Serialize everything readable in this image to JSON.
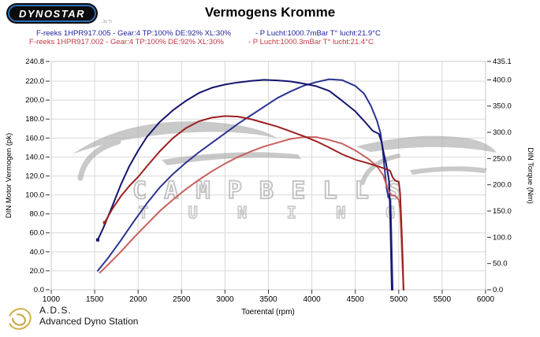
{
  "header": {
    "logo_text": "DYNOSTAR",
    "logo_tagline": "..3c TI",
    "title": "Vermogens Kromme"
  },
  "legend": [
    {
      "run": "F-reeks 1HPR917.005 - Gear:4 TP:100% DE:92% XL:30%",
      "ambient": "- P Lucht:1000.7mBar T° lucht:21.9°C",
      "color": "#2121a0"
    },
    {
      "run": "F-reeks 1HPR917.002 - Gear:4 TP:100% DE:92% XL:30%",
      "ambient": "- P Lucht:1000.3mBar T° lucht:21.4°C",
      "color": "#c23a44"
    }
  ],
  "watermark": {
    "line1": "CAMPBELLS",
    "line2": "TUNING"
  },
  "footer": {
    "abbr": "A.D.S.",
    "name": "Advanced Dyno Station"
  },
  "chart_data": {
    "type": "line",
    "title": "Vermogens Kromme",
    "xlabel": "Toerental (rpm)",
    "ylabel_left": "DIN Motor Vermogen (pk)",
    "ylabel_right": "DIN Torque (Nm)",
    "xlim": [
      1000,
      6000
    ],
    "ylim_left": [
      0,
      240.8
    ],
    "ylim_right": [
      0,
      435.1
    ],
    "grid": true,
    "x_ticks": [
      "1000",
      "1500",
      "2000",
      "2500",
      "3000",
      "3500",
      "4000",
      "4500",
      "5000",
      "5500",
      "6000"
    ],
    "y_ticks_left": [
      "240.8",
      "220.0",
      "200.0",
      "180.0",
      "160.0",
      "140.0",
      "120.0",
      "100.0",
      "80.0",
      "60.0",
      "40.0",
      "20.0",
      "0.0"
    ],
    "y_ticks_right": [
      "435.1",
      "400.0",
      "350.0",
      "300.0",
      "250.0",
      "200.0",
      "150.0",
      "100.0",
      "50.0",
      "0.0"
    ],
    "grid_color": "#d9d9d9",
    "series": [
      {
        "name": "run-005-power",
        "unit": "pk",
        "axis": "left",
        "color": "#2a3390",
        "marker_start": false,
        "points": [
          [
            1535,
            20
          ],
          [
            1650,
            33
          ],
          [
            1800,
            52
          ],
          [
            1950,
            72
          ],
          [
            2100,
            91
          ],
          [
            2250,
            108
          ],
          [
            2400,
            122
          ],
          [
            2550,
            134
          ],
          [
            2700,
            145
          ],
          [
            2850,
            155
          ],
          [
            3000,
            165
          ],
          [
            3150,
            175
          ],
          [
            3300,
            184
          ],
          [
            3450,
            193
          ],
          [
            3600,
            202
          ],
          [
            3750,
            209
          ],
          [
            3900,
            215
          ],
          [
            4050,
            219
          ],
          [
            4200,
            222
          ],
          [
            4350,
            221
          ],
          [
            4500,
            215
          ],
          [
            4600,
            207
          ],
          [
            4680,
            194
          ],
          [
            4750,
            178
          ],
          [
            4790,
            165
          ],
          [
            4815,
            148
          ],
          [
            4840,
            125
          ],
          [
            4860,
            107
          ],
          [
            4880,
            98
          ],
          [
            4905,
            95
          ],
          [
            4915,
            60
          ],
          [
            4925,
            20
          ],
          [
            4930,
            0
          ]
        ]
      },
      {
        "name": "run-005-torque",
        "unit": "Nm",
        "axis": "right",
        "color": "#15156e",
        "marker_start": true,
        "points": [
          [
            1535,
            95
          ],
          [
            1600,
            118
          ],
          [
            1700,
            158
          ],
          [
            1800,
            200
          ],
          [
            1900,
            236
          ],
          [
            2000,
            265
          ],
          [
            2100,
            291
          ],
          [
            2250,
            320
          ],
          [
            2400,
            342
          ],
          [
            2550,
            360
          ],
          [
            2700,
            375
          ],
          [
            2850,
            385
          ],
          [
            3000,
            391
          ],
          [
            3150,
            395
          ],
          [
            3300,
            398
          ],
          [
            3450,
            400
          ],
          [
            3600,
            399
          ],
          [
            3750,
            397
          ],
          [
            3900,
            393
          ],
          [
            4050,
            388
          ],
          [
            4200,
            379
          ],
          [
            4350,
            360
          ],
          [
            4500,
            340
          ],
          [
            4600,
            322
          ],
          [
            4700,
            303
          ],
          [
            4770,
            297
          ],
          [
            4800,
            283
          ],
          [
            4830,
            258
          ],
          [
            4855,
            240
          ],
          [
            4875,
            222
          ],
          [
            4890,
            205
          ],
          [
            4900,
            150
          ],
          [
            4910,
            80
          ],
          [
            4920,
            0
          ]
        ]
      },
      {
        "name": "run-002-power",
        "unit": "pk",
        "axis": "left",
        "color": "#c9605c",
        "marker_start": false,
        "points": [
          [
            1560,
            18
          ],
          [
            1650,
            26
          ],
          [
            1800,
            40
          ],
          [
            1950,
            55
          ],
          [
            2100,
            69
          ],
          [
            2250,
            83
          ],
          [
            2400,
            95
          ],
          [
            2550,
            106
          ],
          [
            2700,
            116
          ],
          [
            2850,
            125
          ],
          [
            3000,
            133
          ],
          [
            3150,
            140
          ],
          [
            3300,
            146
          ],
          [
            3450,
            151
          ],
          [
            3600,
            155
          ],
          [
            3750,
            159
          ],
          [
            3900,
            161
          ],
          [
            4050,
            161
          ],
          [
            4200,
            158
          ],
          [
            4350,
            154
          ],
          [
            4500,
            147
          ],
          [
            4650,
            138
          ],
          [
            4750,
            130
          ],
          [
            4820,
            121
          ],
          [
            4860,
            110
          ],
          [
            4890,
            103
          ],
          [
            4920,
            100
          ],
          [
            4960,
            99
          ],
          [
            5000,
            95
          ],
          [
            5015,
            85
          ],
          [
            5030,
            55
          ],
          [
            5045,
            20
          ],
          [
            5055,
            0
          ]
        ]
      },
      {
        "name": "run-002-torque",
        "unit": "Nm",
        "axis": "right",
        "color": "#9c2020",
        "marker_start": true,
        "points": [
          [
            1615,
            128
          ],
          [
            1700,
            153
          ],
          [
            1800,
            178
          ],
          [
            1900,
            198
          ],
          [
            2000,
            215
          ],
          [
            2100,
            235
          ],
          [
            2250,
            264
          ],
          [
            2400,
            289
          ],
          [
            2550,
            308
          ],
          [
            2700,
            321
          ],
          [
            2850,
            328
          ],
          [
            3000,
            331
          ],
          [
            3150,
            330
          ],
          [
            3300,
            325
          ],
          [
            3450,
            318
          ],
          [
            3600,
            311
          ],
          [
            3750,
            302
          ],
          [
            3900,
            293
          ],
          [
            4050,
            283
          ],
          [
            4200,
            271
          ],
          [
            4350,
            258
          ],
          [
            4500,
            248
          ],
          [
            4650,
            241
          ],
          [
            4800,
            233
          ],
          [
            4900,
            227
          ],
          [
            4930,
            214
          ],
          [
            4960,
            208
          ],
          [
            5000,
            206
          ],
          [
            5015,
            185
          ],
          [
            5030,
            130
          ],
          [
            5045,
            60
          ],
          [
            5055,
            0
          ]
        ]
      }
    ]
  }
}
